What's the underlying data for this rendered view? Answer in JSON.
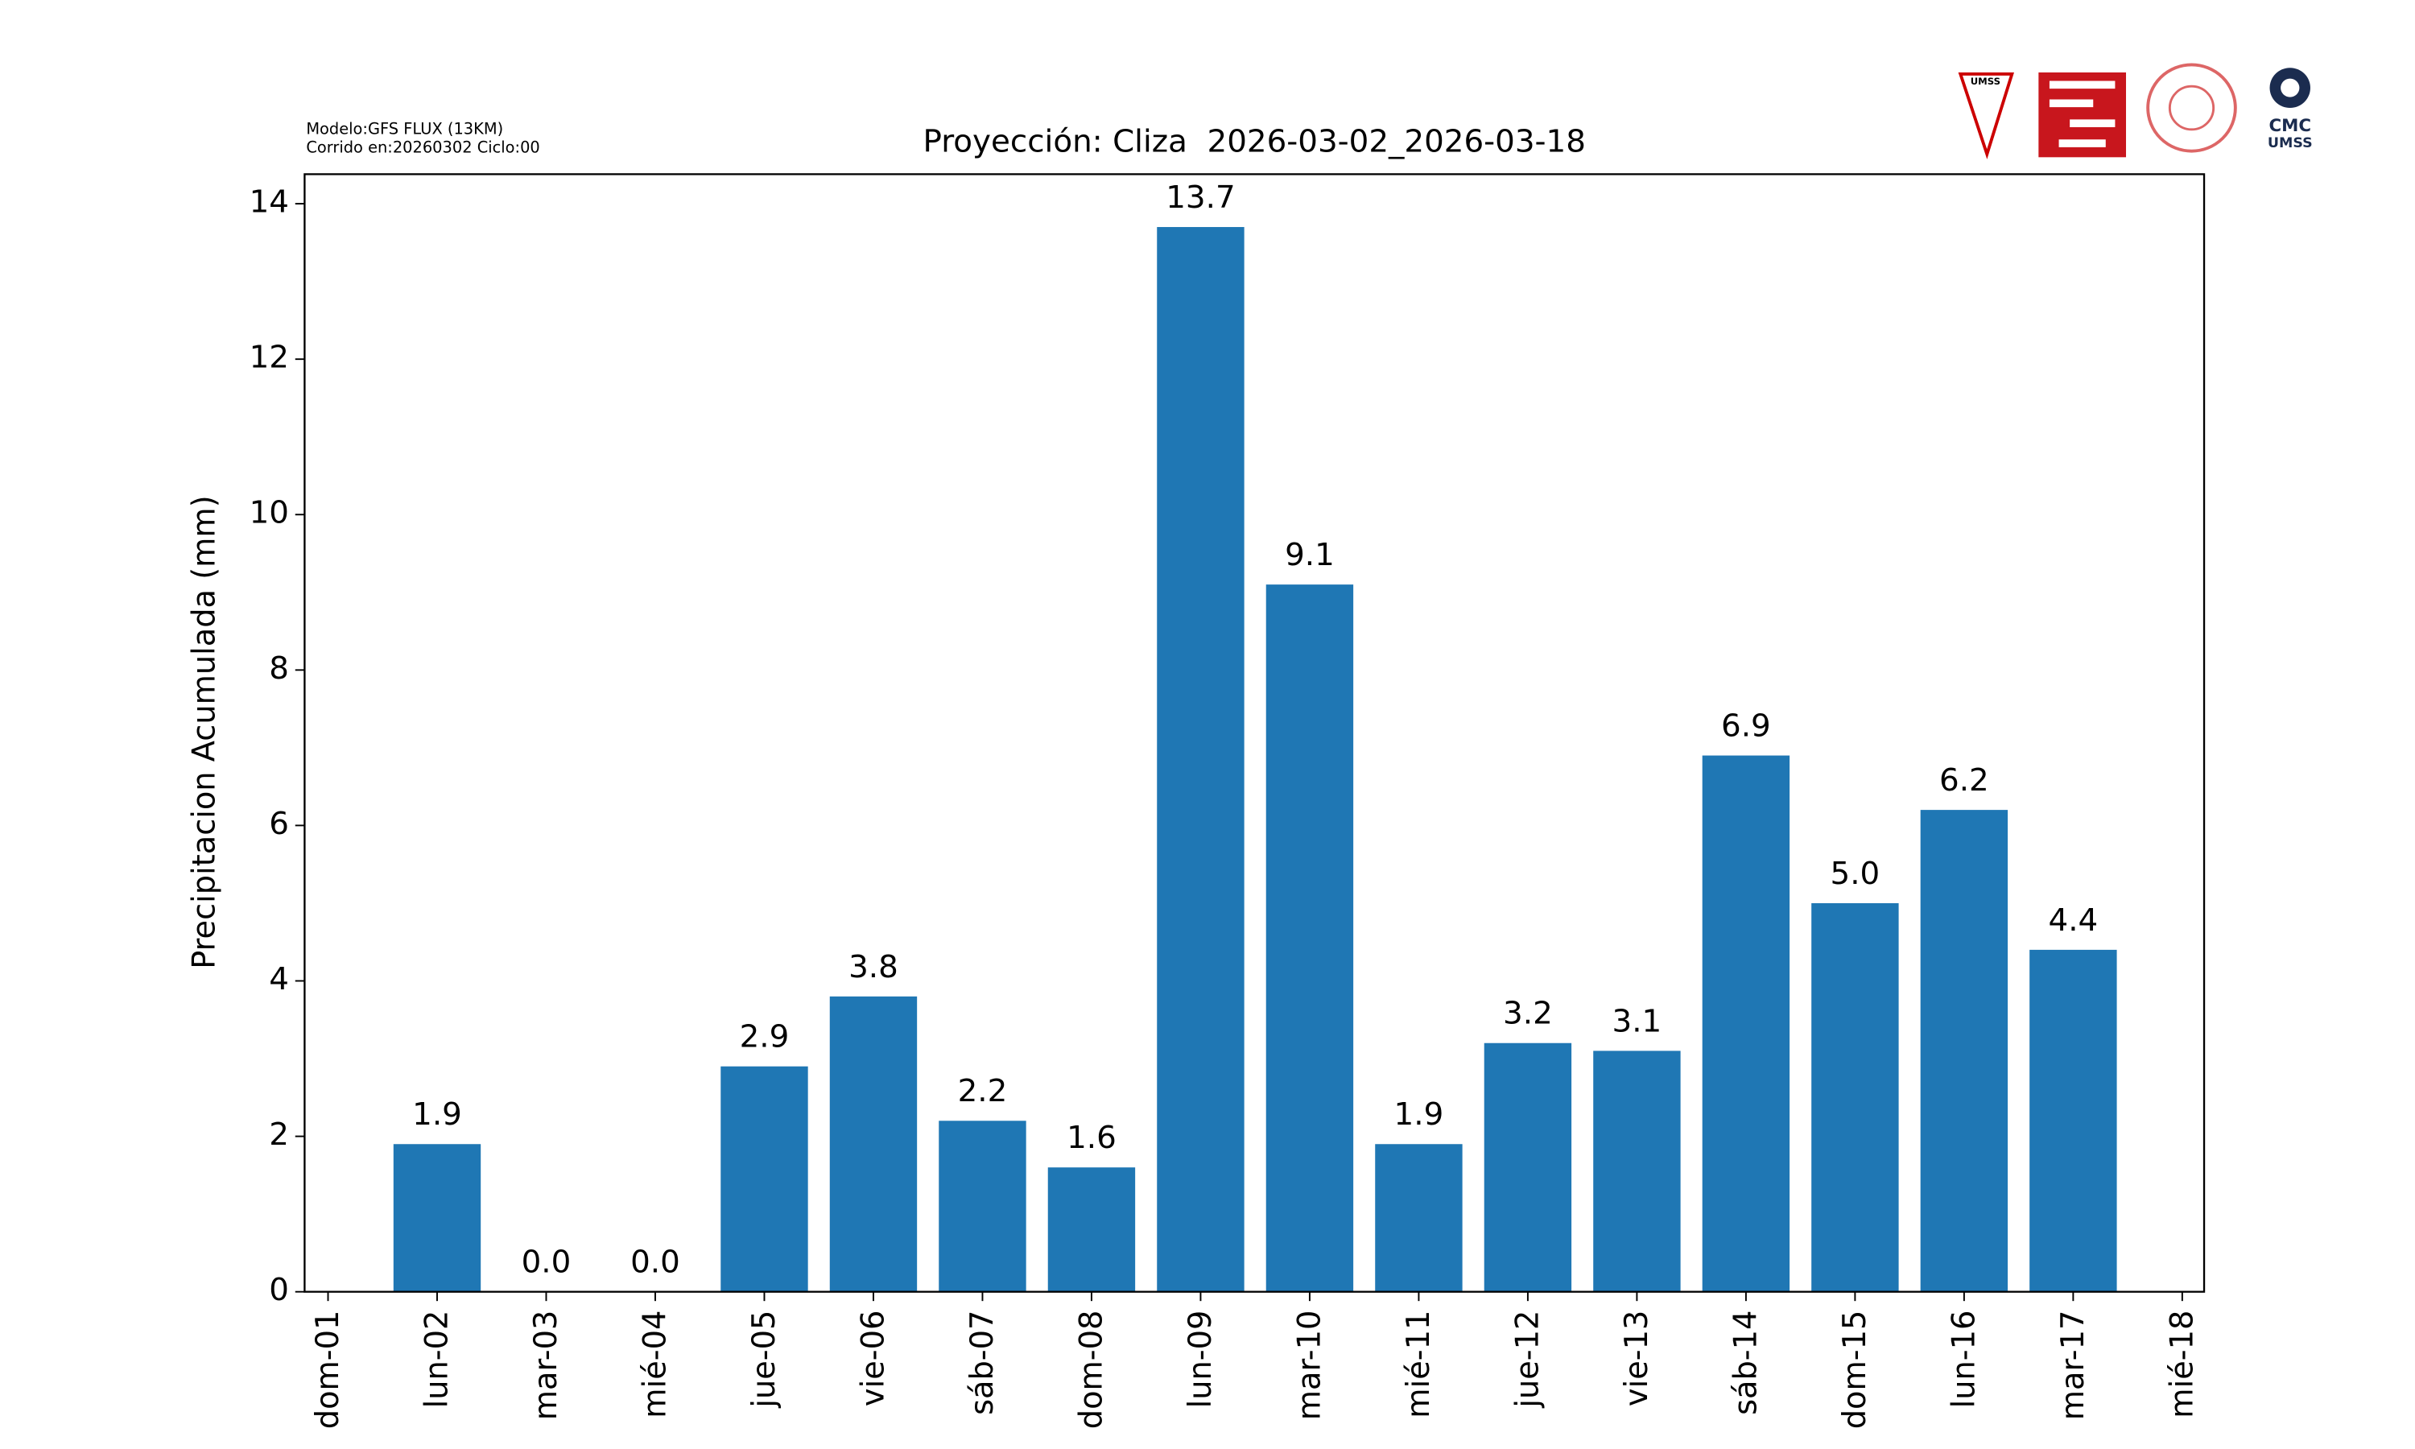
{
  "chart_data": {
    "type": "bar",
    "title": "Proyección: Cliza  2026-03-02_2026-03-18",
    "model_note": [
      "Modelo:GFS FLUX (13KM)",
      "Corrido en:20260302 Ciclo:00"
    ],
    "logos": [
      "UMSS",
      "CMC",
      "UMSS"
    ],
    "ylabel": "Precipitacion Acumulada (mm)",
    "categories": [
      "dom-01",
      "lun-02",
      "mar-03",
      "mié-04",
      "jue-05",
      "vie-06",
      "sáb-07",
      "dom-08",
      "lun-09",
      "mar-10",
      "mié-11",
      "jue-12",
      "vie-13",
      "sáb-14",
      "dom-15",
      "lun-16",
      "mar-17",
      "mié-18"
    ],
    "values": [
      null,
      1.9,
      0,
      0,
      2.9,
      3.8,
      2.2,
      1.6,
      13.7,
      9.1,
      1.9,
      3.2,
      3.1,
      6.9,
      5.0,
      6.2,
      4.4,
      null
    ],
    "value_labels": [
      null,
      "1.9",
      "0.0",
      "0.0",
      "2.9",
      "3.8",
      "2.2",
      "1.6",
      "13.7",
      "9.1",
      "1.9",
      "3.2",
      "3.1",
      "6.9",
      "5.0",
      "6.2",
      "4.4",
      null
    ],
    "color": "#1f77b4",
    "ylim": [
      0,
      14.38
    ],
    "yticks": [
      0,
      2,
      4,
      6,
      8,
      10,
      12,
      14
    ],
    "grid": false
  }
}
